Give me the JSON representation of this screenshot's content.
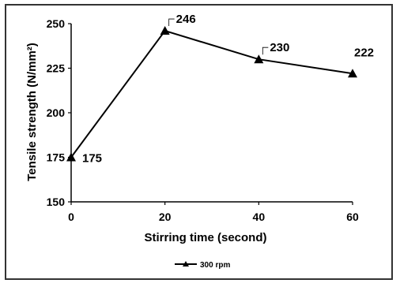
{
  "chart_data": {
    "type": "line",
    "xlabel": "Stirring time (second)",
    "ylabel": "Tensile strength (N/mm²)",
    "x": [
      0,
      20,
      40,
      60
    ],
    "xticks": [
      "0",
      "20",
      "40",
      "60"
    ],
    "yticks": [
      "150",
      "175",
      "200",
      "225",
      "250"
    ],
    "ylim": [
      150,
      250
    ],
    "xlim": [
      0,
      60
    ],
    "grid": false,
    "legend_position": "bottom",
    "series": [
      {
        "name": "300 rpm",
        "values": [
          175,
          246,
          230,
          222
        ],
        "data_labels": [
          "175",
          "246",
          "230",
          "222"
        ],
        "marker": "triangle",
        "color": "#000000"
      }
    ]
  }
}
